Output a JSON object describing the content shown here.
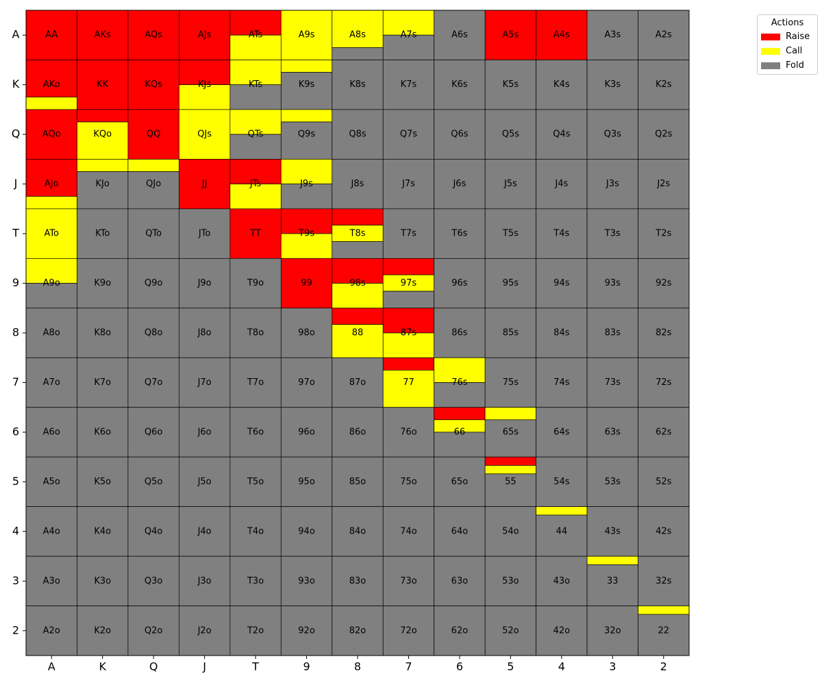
{
  "chart_data": {
    "type": "heatmap",
    "title": "",
    "xlabel": "",
    "ylabel": "",
    "ranks": [
      "A",
      "K",
      "Q",
      "J",
      "T",
      "9",
      "8",
      "7",
      "6",
      "5",
      "4",
      "3",
      "2"
    ],
    "x_ticks": [
      "A",
      "K",
      "Q",
      "J",
      "T",
      "9",
      "8",
      "7",
      "6",
      "5",
      "4",
      "3",
      "2"
    ],
    "y_ticks": [
      "A",
      "K",
      "Q",
      "J",
      "T",
      "9",
      "8",
      "7",
      "6",
      "5",
      "4",
      "3",
      "2"
    ],
    "legend": {
      "title": "Actions",
      "placement": "top-right, outside plot",
      "entries": [
        {
          "name": "Raise",
          "color": "#ff0000"
        },
        {
          "name": "Call",
          "color": "#ffff00"
        },
        {
          "name": "Fold",
          "color": "#808080"
        }
      ]
    },
    "action_colors": {
      "raise": "#ff0000",
      "call": "#ffff00",
      "fold": "#808080"
    },
    "frequency_note": "Each cell stacked top to bottom: raise, call, fold frequencies",
    "hands": [
      {
        "hand": "AA",
        "raise": 1.0,
        "call": 0.0
      },
      {
        "hand": "AKs",
        "raise": 1.0,
        "call": 0.0
      },
      {
        "hand": "AQs",
        "raise": 1.0,
        "call": 0.0
      },
      {
        "hand": "AJs",
        "raise": 1.0,
        "call": 0.0
      },
      {
        "hand": "ATs",
        "raise": 0.5,
        "call": 0.5
      },
      {
        "hand": "A9s",
        "raise": 0.0,
        "call": 1.0
      },
      {
        "hand": "A8s",
        "raise": 0.0,
        "call": 0.75
      },
      {
        "hand": "A7s",
        "raise": 0.0,
        "call": 0.5
      },
      {
        "hand": "A5s",
        "raise": 1.0,
        "call": 0.0
      },
      {
        "hand": "A4s",
        "raise": 1.0,
        "call": 0.0
      },
      {
        "hand": "AKo",
        "raise": 0.75,
        "call": 0.25
      },
      {
        "hand": "KK",
        "raise": 1.0,
        "call": 0.0
      },
      {
        "hand": "KQs",
        "raise": 1.0,
        "call": 0.0
      },
      {
        "hand": "KJs",
        "raise": 0.5,
        "call": 0.5
      },
      {
        "hand": "KTs",
        "raise": 0.0,
        "call": 0.5
      },
      {
        "hand": "K9s",
        "raise": 0.0,
        "call": 0.25
      },
      {
        "hand": "AQo",
        "raise": 1.0,
        "call": 0.0
      },
      {
        "hand": "KQo",
        "raise": 0.25,
        "call": 0.75
      },
      {
        "hand": "QQ",
        "raise": 1.0,
        "call": 0.0
      },
      {
        "hand": "QJs",
        "raise": 0.0,
        "call": 1.0
      },
      {
        "hand": "QTs",
        "raise": 0.0,
        "call": 0.5
      },
      {
        "hand": "Q9s",
        "raise": 0.0,
        "call": 0.25
      },
      {
        "hand": "AJo",
        "raise": 0.75,
        "call": 0.25
      },
      {
        "hand": "KJo",
        "raise": 0.0,
        "call": 0.25
      },
      {
        "hand": "QJo",
        "raise": 0.0,
        "call": 0.25
      },
      {
        "hand": "JJ",
        "raise": 1.0,
        "call": 0.0
      },
      {
        "hand": "JTs",
        "raise": 0.5,
        "call": 0.5
      },
      {
        "hand": "J9s",
        "raise": 0.0,
        "call": 0.5
      },
      {
        "hand": "ATo",
        "raise": 0.0,
        "call": 1.0
      },
      {
        "hand": "TT",
        "raise": 1.0,
        "call": 0.0
      },
      {
        "hand": "T9s",
        "raise": 0.5,
        "call": 0.5
      },
      {
        "hand": "T8s",
        "raise": 0.33,
        "call": 0.33
      },
      {
        "hand": "A9o",
        "raise": 0.0,
        "call": 0.5
      },
      {
        "hand": "99",
        "raise": 1.0,
        "call": 0.0
      },
      {
        "hand": "98s",
        "raise": 0.5,
        "call": 0.5
      },
      {
        "hand": "97s",
        "raise": 0.33,
        "call": 0.33
      },
      {
        "hand": "88",
        "raise": 0.33,
        "call": 0.67
      },
      {
        "hand": "87s",
        "raise": 0.5,
        "call": 0.5
      },
      {
        "hand": "77",
        "raise": 0.25,
        "call": 0.75
      },
      {
        "hand": "76s",
        "raise": 0.0,
        "call": 0.5
      },
      {
        "hand": "66",
        "raise": 0.25,
        "call": 0.25
      },
      {
        "hand": "65s",
        "raise": 0.0,
        "call": 0.25
      },
      {
        "hand": "55",
        "raise": 0.17,
        "call": 0.17
      },
      {
        "hand": "44",
        "raise": 0.0,
        "call": 0.17
      },
      {
        "hand": "33",
        "raise": 0.0,
        "call": 0.17
      },
      {
        "hand": "22",
        "raise": 0.0,
        "call": 0.17
      }
    ]
  }
}
